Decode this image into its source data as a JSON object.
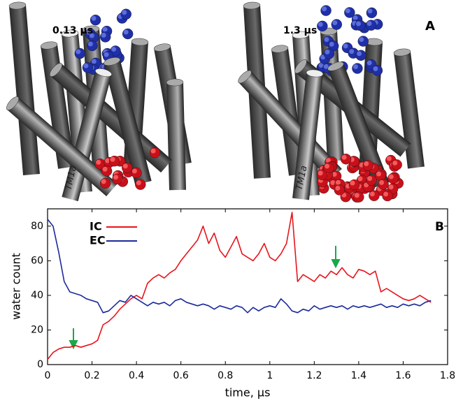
{
  "panel_a": {
    "left_label": "0.13 µs",
    "right_label": "1.3 µs",
    "panel_letter": "A",
    "helix_label_left": "TM1a",
    "helix_label_right": "TM1a"
  },
  "chart_data": {
    "type": "line",
    "panel_letter": "B",
    "x_label": "time, μs",
    "y_label": "water count",
    "x": [
      0,
      0.025,
      0.05,
      0.075,
      0.1,
      0.125,
      0.15,
      0.175,
      0.2,
      0.225,
      0.25,
      0.275,
      0.3,
      0.325,
      0.35,
      0.375,
      0.4,
      0.425,
      0.45,
      0.475,
      0.5,
      0.525,
      0.55,
      0.575,
      0.6,
      0.625,
      0.65,
      0.675,
      0.7,
      0.725,
      0.75,
      0.775,
      0.8,
      0.825,
      0.85,
      0.875,
      0.9,
      0.925,
      0.95,
      0.975,
      1.0,
      1.025,
      1.05,
      1.075,
      1.1,
      1.125,
      1.15,
      1.175,
      1.2,
      1.225,
      1.25,
      1.275,
      1.3,
      1.325,
      1.35,
      1.375,
      1.4,
      1.425,
      1.45,
      1.475,
      1.5,
      1.525,
      1.55,
      1.575,
      1.6,
      1.625,
      1.65,
      1.675,
      1.7,
      1.725
    ],
    "series": [
      {
        "name": "IC",
        "color": "#e8141b",
        "values": [
          3,
          7,
          9,
          10,
          10,
          11,
          10,
          11,
          12,
          14,
          23,
          25,
          28,
          32,
          35,
          38,
          40,
          38,
          47,
          50,
          52,
          50,
          53,
          55,
          60,
          64,
          68,
          72,
          80,
          70,
          76,
          66,
          62,
          68,
          74,
          64,
          62,
          60,
          64,
          70,
          62,
          60,
          64,
          70,
          88,
          48,
          52,
          50,
          48,
          52,
          50,
          54,
          52,
          56,
          52,
          50,
          55,
          54,
          52,
          54,
          42,
          44,
          42,
          40,
          38,
          37,
          38,
          40,
          38,
          36
        ]
      },
      {
        "name": "EC",
        "color": "#1c2a9a",
        "values": [
          84,
          80,
          65,
          48,
          42,
          41,
          40,
          38,
          37,
          36,
          30,
          31,
          34,
          37,
          36,
          40,
          38,
          36,
          34,
          36,
          35,
          36,
          34,
          37,
          38,
          36,
          35,
          34,
          35,
          34,
          32,
          34,
          33,
          32,
          34,
          33,
          30,
          33,
          31,
          33,
          34,
          33,
          38,
          35,
          31,
          30,
          32,
          31,
          34,
          32,
          33,
          34,
          33,
          34,
          32,
          34,
          33,
          34,
          33,
          34,
          35,
          33,
          34,
          33,
          35,
          34,
          35,
          34,
          36,
          37
        ]
      }
    ],
    "xlim": [
      0,
      1.8
    ],
    "xticks": [
      0,
      0.2,
      0.4,
      0.6,
      0.8,
      1,
      1.2,
      1.4,
      1.6,
      1.8
    ],
    "ylim": [
      0,
      90
    ],
    "yticks": [
      0,
      20,
      40,
      60,
      80
    ]
  }
}
